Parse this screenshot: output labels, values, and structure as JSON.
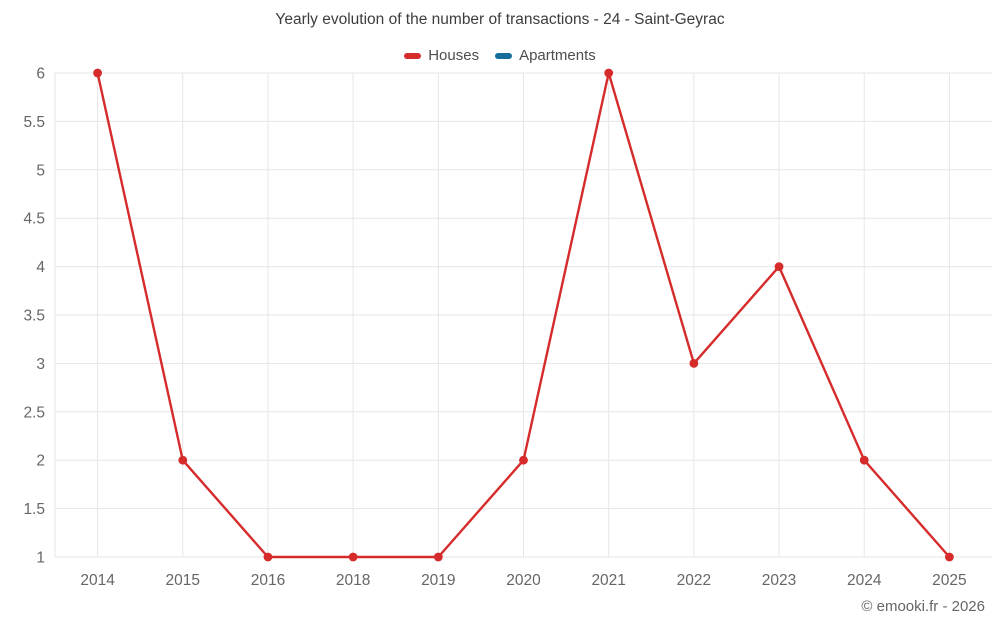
{
  "title": "Yearly evolution of the number of transactions - 24 - Saint-Geyrac",
  "watermark": "© emooki.fr - 2026",
  "colors": {
    "houses": "#d62b2b",
    "apartments": "#166d9b",
    "grid": "#e6e6e6",
    "axis_text": "#666666",
    "title_text": "#3d3d3d"
  },
  "chart_data": {
    "type": "line",
    "title": "Yearly evolution of the number of transactions - 24 - Saint-Geyrac",
    "categories": [
      "2014",
      "2015",
      "2016",
      "2018",
      "2019",
      "2020",
      "2021",
      "2022",
      "2023",
      "2024",
      "2025"
    ],
    "series": [
      {
        "name": "Houses",
        "color": "#d62b2b",
        "values": [
          6,
          2,
          1,
          1,
          1,
          2,
          6,
          3,
          4,
          2,
          1
        ]
      },
      {
        "name": "Apartments",
        "color": "#166d9b",
        "values": []
      }
    ],
    "xlabel": "",
    "ylabel": "",
    "ylim": [
      1,
      6
    ],
    "ytick_step": 0.5,
    "grid": true,
    "legend_position": "top"
  }
}
